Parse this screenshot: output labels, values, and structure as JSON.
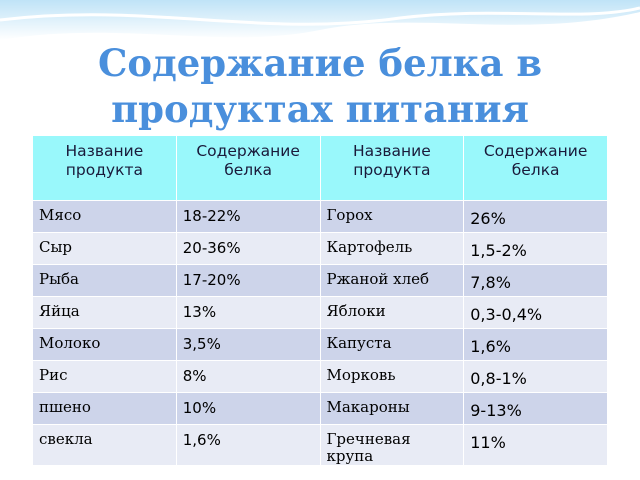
{
  "title": "Содержание белка в продуктах питания",
  "table": {
    "header": [
      "Название продукта",
      "Содержание белка",
      "Название продукта",
      "Содержание белка"
    ],
    "rows": [
      [
        "Мясо",
        "18-22%",
        "Горох",
        "26%"
      ],
      [
        "Сыр",
        "20-36%",
        "Картофель",
        "1,5-2%"
      ],
      [
        "Рыба",
        "17-20%",
        "Ржаной хлеб",
        "7,8%"
      ],
      [
        "Яйца",
        "13%",
        "Яблоки",
        "0,3-0,4%"
      ],
      [
        "Молоко",
        "3,5%",
        "Капуста",
        "1,6%"
      ],
      [
        "Рис",
        "8%",
        "Морковь",
        "0,8-1%"
      ],
      [
        "пшено",
        "10%",
        "Макароны",
        "9-13%"
      ],
      [
        "свекла",
        "1,6%",
        "Гречневая крупа",
        "11%"
      ]
    ]
  }
}
